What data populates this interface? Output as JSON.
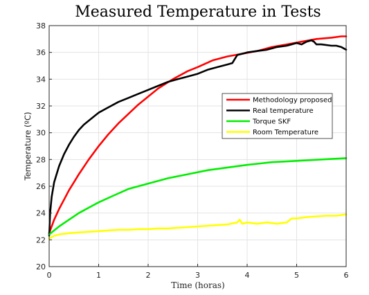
{
  "chart_data": {
    "type": "line",
    "title": "Measured Temperature in Tests",
    "xlabel": "Time (horas)",
    "ylabel": "Temperature (ºC)",
    "xlim": [
      0,
      6
    ],
    "ylim": [
      20,
      38
    ],
    "xticks": [
      0,
      1,
      2,
      3,
      4,
      5,
      6
    ],
    "yticks": [
      20,
      22,
      24,
      26,
      28,
      30,
      32,
      34,
      36,
      38
    ],
    "grid": true,
    "legend_position": "right",
    "series": [
      {
        "name": "Methodology proposed",
        "color": "#ff0000",
        "x": [
          0,
          0.05,
          0.1,
          0.2,
          0.3,
          0.4,
          0.5,
          0.6,
          0.8,
          1.0,
          1.2,
          1.4,
          1.6,
          1.8,
          2.0,
          2.2,
          2.5,
          2.8,
          3.0,
          3.3,
          3.6,
          3.9,
          4.2,
          4.5,
          4.8,
          5.1,
          5.4,
          5.7,
          5.9,
          6.0
        ],
        "y": [
          22.5,
          23.0,
          23.5,
          24.3,
          25.0,
          25.7,
          26.3,
          26.9,
          28.0,
          29.0,
          29.9,
          30.7,
          31.4,
          32.1,
          32.7,
          33.3,
          34.0,
          34.6,
          34.9,
          35.4,
          35.7,
          35.9,
          36.1,
          36.4,
          36.6,
          36.8,
          37.0,
          37.1,
          37.2,
          37.2
        ]
      },
      {
        "name": "Real temperature",
        "color": "#000000",
        "x": [
          0,
          0.02,
          0.05,
          0.1,
          0.2,
          0.3,
          0.4,
          0.5,
          0.6,
          0.7,
          0.8,
          0.9,
          1.0,
          1.2,
          1.4,
          1.6,
          1.8,
          2.0,
          2.2,
          2.4,
          2.6,
          2.8,
          3.0,
          3.2,
          3.4,
          3.5,
          3.6,
          3.7,
          3.75,
          3.8,
          3.9,
          4.0,
          4.2,
          4.4,
          4.5,
          4.6,
          4.8,
          5.0,
          5.1,
          5.2,
          5.3,
          5.35,
          5.4,
          5.5,
          5.7,
          5.8,
          5.9,
          6.0
        ],
        "y": [
          22.3,
          24.0,
          25.2,
          26.3,
          27.5,
          28.4,
          29.1,
          29.7,
          30.2,
          30.6,
          30.9,
          31.2,
          31.5,
          31.9,
          32.3,
          32.6,
          32.9,
          33.2,
          33.5,
          33.8,
          34.0,
          34.2,
          34.4,
          34.7,
          34.9,
          35.0,
          35.1,
          35.2,
          35.5,
          35.8,
          35.9,
          36.0,
          36.1,
          36.2,
          36.3,
          36.4,
          36.5,
          36.7,
          36.6,
          36.8,
          36.9,
          36.8,
          36.6,
          36.6,
          36.5,
          36.5,
          36.4,
          36.2
        ]
      },
      {
        "name": "Torque SKF",
        "color": "#00ee00",
        "x": [
          0,
          0.2,
          0.4,
          0.6,
          0.8,
          1.0,
          1.3,
          1.6,
          2.0,
          2.4,
          2.8,
          3.2,
          3.6,
          4.0,
          4.5,
          5.0,
          5.5,
          6.0
        ],
        "y": [
          22.4,
          23.0,
          23.5,
          24.0,
          24.4,
          24.8,
          25.3,
          25.8,
          26.2,
          26.6,
          26.9,
          27.2,
          27.4,
          27.6,
          27.8,
          27.9,
          28.0,
          28.1
        ]
      },
      {
        "name": "Room Temperature",
        "color": "#ffff00",
        "x": [
          0,
          0.1,
          0.2,
          0.4,
          0.6,
          0.8,
          1.0,
          1.2,
          1.4,
          1.6,
          1.8,
          2.0,
          2.2,
          2.4,
          2.6,
          2.8,
          3.0,
          3.2,
          3.4,
          3.6,
          3.8,
          3.85,
          3.9,
          4.0,
          4.2,
          4.4,
          4.6,
          4.8,
          4.9,
          5.0,
          5.2,
          5.4,
          5.6,
          5.8,
          6.0
        ],
        "y": [
          22.1,
          22.3,
          22.4,
          22.5,
          22.55,
          22.6,
          22.65,
          22.7,
          22.75,
          22.75,
          22.8,
          22.8,
          22.85,
          22.85,
          22.9,
          22.95,
          23.0,
          23.05,
          23.1,
          23.15,
          23.3,
          23.5,
          23.2,
          23.3,
          23.2,
          23.3,
          23.2,
          23.3,
          23.6,
          23.6,
          23.7,
          23.75,
          23.8,
          23.8,
          23.9
        ]
      }
    ]
  }
}
